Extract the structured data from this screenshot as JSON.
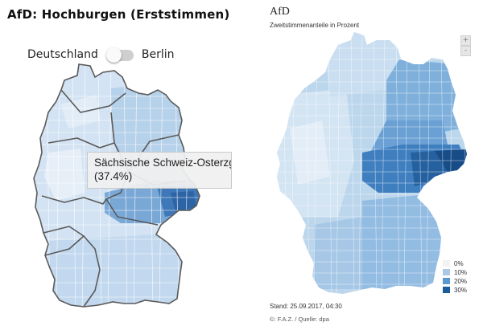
{
  "left": {
    "title": "AfD: Hochburgen (Erststimmen)",
    "toggle": {
      "left_label": "Deutschland",
      "right_label": "Berlin"
    },
    "tooltip": {
      "line1": "Sächsische Schweiz-Osterzgebirge",
      "line2": "(37.4%)"
    },
    "colors": {
      "light": "#cfe0f1",
      "mid": "#9fc1e2",
      "dark": "#5891c8",
      "border": "#555555"
    }
  },
  "right": {
    "title": "AfD",
    "subtitle": "Zweitstimmenanteile in Prozent",
    "zoom_in": "+",
    "zoom_out": "-",
    "legend": [
      {
        "label": "0%",
        "color": "#f2f2f2"
      },
      {
        "label": "10%",
        "color": "#a9c9e6"
      },
      {
        "label": "20%",
        "color": "#5a99cf"
      },
      {
        "label": "30%",
        "color": "#1b5d9a"
      }
    ],
    "stand": "Stand: 25.09.2017, 04:30",
    "credit": "©: F.A.Z. / Quelle: dpa"
  }
}
